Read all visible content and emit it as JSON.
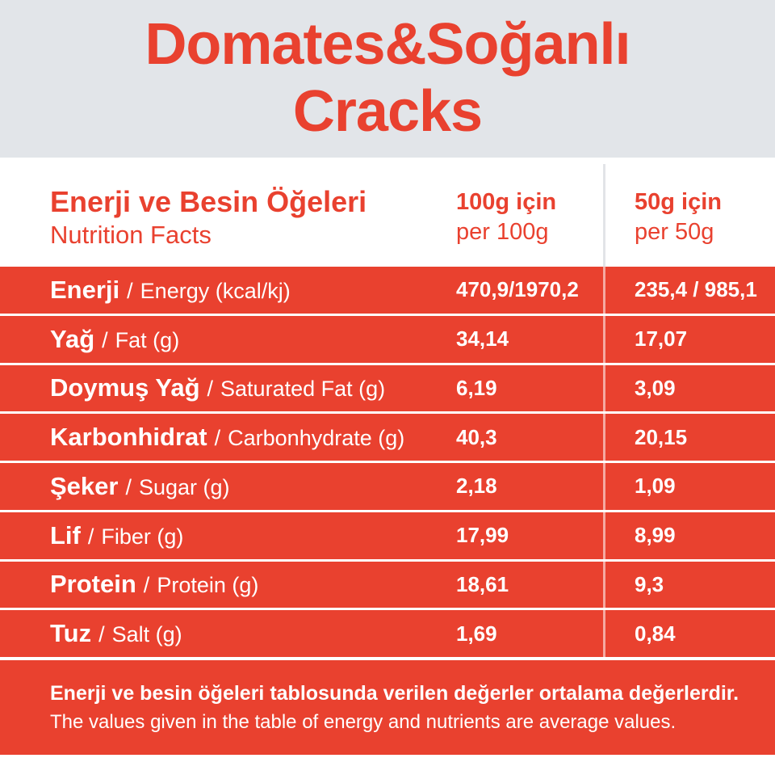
{
  "colors": {
    "accent_red": "#E9412F",
    "title_background_gray": "#E2E5E9",
    "table_text_white": "#FFFFFF",
    "divider_gray": "#E2E4E8"
  },
  "title": {
    "line1": "Domates&Soğanlı",
    "line2": "Cracks"
  },
  "header": {
    "title_tr": "Enerji ve Besin Öğeleri",
    "title_en": "Nutrition Facts",
    "col_100g": {
      "tr": "100g için",
      "en": "per 100g"
    },
    "col_50g": {
      "tr": "50g için",
      "en": "per 50g"
    }
  },
  "table": {
    "separator": "/",
    "rows": [
      {
        "tr": "Enerji",
        "en": "Energy (kcal/kj)",
        "per100": "470,9/1970,2",
        "per50": "235,4 / 985,1"
      },
      {
        "tr": "Yağ",
        "en": "Fat (g)",
        "per100": "34,14",
        "per50": "17,07"
      },
      {
        "tr": "Doymuş Yağ",
        "en": "Saturated Fat (g)",
        "per100": "6,19",
        "per50": "3,09"
      },
      {
        "tr": "Karbonhidrat",
        "en": "Carbonhydrate (g)",
        "per100": "40,3",
        "per50": "20,15"
      },
      {
        "tr": "Şeker",
        "en": "Sugar (g)",
        "per100": "2,18",
        "per50": "1,09"
      },
      {
        "tr": "Lif",
        "en": "Fiber (g)",
        "per100": "17,99",
        "per50": "8,99"
      },
      {
        "tr": "Protein",
        "en": "Protein (g)",
        "per100": "18,61",
        "per50": "9,3"
      },
      {
        "tr": "Tuz",
        "en": "Salt (g)",
        "per100": "1,69",
        "per50": "0,84"
      }
    ]
  },
  "footer": {
    "tr": "Enerji ve besin öğeleri tablosunda verilen değerler ortalama değerlerdir.",
    "en": "The values given in the table of energy and nutrients are average values."
  }
}
